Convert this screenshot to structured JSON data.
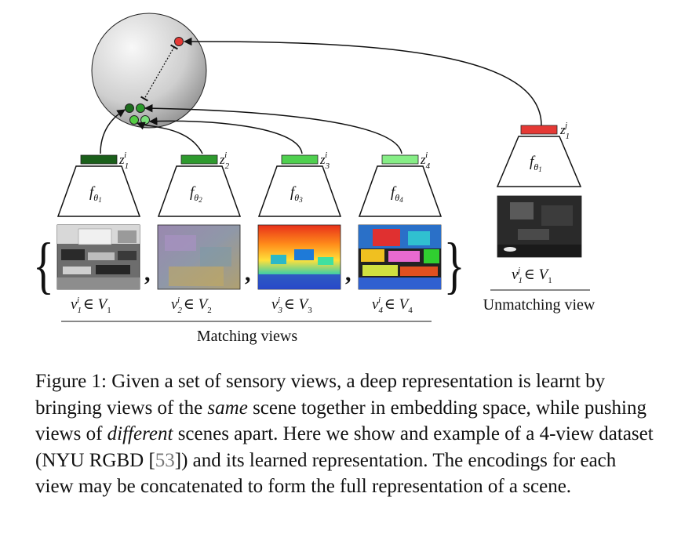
{
  "figure": {
    "matching_label": "Matching views",
    "unmatching_label": "Unmatching view",
    "views": [
      {
        "encoder": "θ₁",
        "embedding_label": "i,1",
        "view_label": "1",
        "set": "1",
        "bar_color": "#1a5f1a",
        "dot_color": "#1d6b1d"
      },
      {
        "encoder": "θ₂",
        "embedding_label": "i,2",
        "view_label": "2",
        "set": "2",
        "bar_color": "#2e9a2e",
        "dot_color": "#2a9a2a"
      },
      {
        "encoder": "θ₃",
        "embedding_label": "i,3",
        "view_label": "3",
        "set": "3",
        "bar_color": "#4fd04f",
        "dot_color": "#55cc44"
      },
      {
        "encoder": "θ₄",
        "embedding_label": "i,4",
        "view_label": "4",
        "set": "4",
        "bar_color": "#86ee86",
        "dot_color": "#7be07b"
      }
    ],
    "unmatching": {
      "encoder": "θ₁",
      "bar_color": "#e53935",
      "dot_color": "#e53935"
    }
  },
  "caption": {
    "prefix": "Figure 1: ",
    "part1": "Given a set of sensory views, a deep representation is learnt by bringing views of the ",
    "same": "same",
    "part2": " scene together in embedding space, while pushing views of ",
    "different": "different",
    "part3": " scenes apart. Here we show and example of a 4-view dataset (NYU RGBD [",
    "ref": "53",
    "part4": "]) and its learned representation. The encodings for each view may be concatenated to form the full representation of a scene."
  }
}
